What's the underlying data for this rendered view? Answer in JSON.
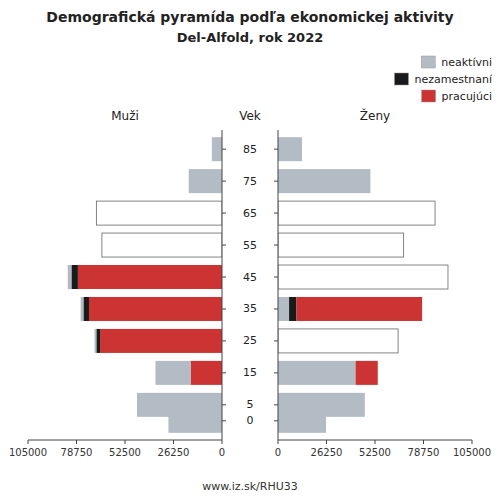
{
  "chart_data": [
    {
      "type": "bar",
      "orientation": "horizontal",
      "stacked": true,
      "title": "Demografická pyramída podľa ekonomickej aktivity",
      "subtitle": "Del-Alfold, rok 2022",
      "xlabel": "Muži",
      "ylabel": "Vek",
      "annotations": [
        "www.iz.sk/RHU33"
      ],
      "xlim": [
        105000,
        0
      ],
      "xticks": [
        105000,
        78750,
        52500,
        26250,
        0
      ],
      "ylim": [
        -6,
        91
      ],
      "yticks": [
        0,
        5,
        15,
        25,
        35,
        45,
        55,
        65,
        75,
        85
      ],
      "y": [
        85,
        75,
        65,
        55,
        45,
        35,
        25,
        15,
        5,
        0
      ],
      "series": [
        {
          "color": "#b3bcc4",
          "colors": [
            "#b3bcc4",
            "#b3bcc4",
            "#ffffff",
            "#ffffff",
            "#b3bcc4",
            "#b3bcc4",
            "#b3bcc4",
            "#b3bcc4",
            "#b3bcc4",
            "#b3bcc4"
          ],
          "values": [
            5500,
            18000,
            68000,
            65000,
            2000,
            1500,
            1000,
            19000,
            46000,
            29000
          ]
        },
        {
          "color": "#1a1a1a",
          "values": [
            0,
            0,
            0,
            0,
            3500,
            3000,
            2000,
            0,
            0,
            0
          ]
        },
        {
          "color": "#cc3333",
          "values": [
            0,
            0,
            0,
            0,
            78000,
            72000,
            66000,
            17000,
            0,
            0
          ]
        }
      ]
    },
    {
      "type": "bar",
      "orientation": "horizontal",
      "stacked": true,
      "xlabel": "Ženy",
      "legend": "upper right",
      "xlim": [
        0,
        105000
      ],
      "xticks": [
        0,
        26250,
        52500,
        78750,
        105000
      ],
      "ylim": [
        -6,
        91
      ],
      "yticks": [
        0,
        5,
        15,
        25,
        35,
        45,
        55,
        65,
        75,
        85
      ],
      "y": [
        85,
        75,
        65,
        55,
        45,
        35,
        25,
        15,
        5,
        0
      ],
      "series": [
        {
          "name": "neaktívni",
          "color": "#b3bcc4",
          "colors": [
            "#b3bcc4",
            "#b3bcc4",
            "#ffffff",
            "#ffffff",
            "#ffffff",
            "#b3bcc4",
            "#ffffff",
            "#b3bcc4",
            "#b3bcc4",
            "#b3bcc4"
          ],
          "values": [
            13000,
            50000,
            85000,
            68000,
            92000,
            6000,
            65000,
            42000,
            47000,
            26000
          ]
        },
        {
          "name": "nezamestnaní",
          "color": "#1a1a1a",
          "values": [
            0,
            0,
            0,
            0,
            0,
            4000,
            0,
            0,
            0,
            0
          ]
        },
        {
          "name": "pracujúci",
          "color": "#cc3333",
          "values": [
            0,
            0,
            0,
            0,
            0,
            68000,
            0,
            12000,
            0,
            0
          ]
        }
      ]
    }
  ]
}
